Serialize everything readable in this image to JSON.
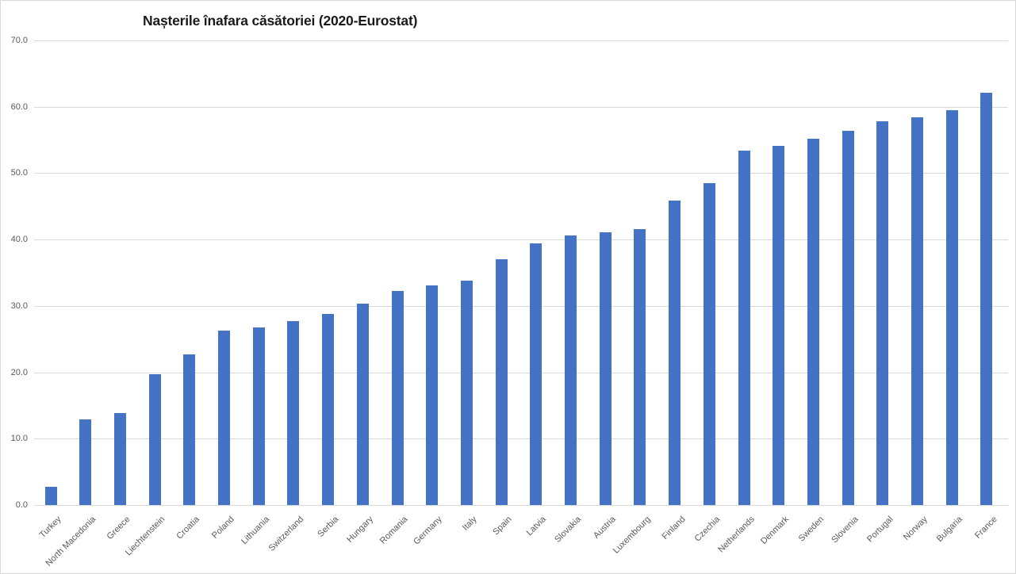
{
  "chart_data": {
    "type": "bar",
    "title": "Nașterile înafara căsătoriei (2020-Eurostat)",
    "categories": [
      "Turkey",
      "North Macedonia",
      "Greece",
      "Liechtenstein",
      "Croatia",
      "Poland",
      "Lithuania",
      "Switzerland",
      "Serbia",
      "Hungary",
      "Romania",
      "Germany",
      "Italy",
      "Spain",
      "Latvia",
      "Slovakia",
      "Austria",
      "Luxembourg",
      "Finland",
      "Czechia",
      "Netherlands",
      "Denmark",
      "Sweden",
      "Slovenia",
      "Portugal",
      "Norway",
      "Bulgaria",
      "France"
    ],
    "values": [
      2.8,
      12.9,
      13.8,
      19.7,
      22.7,
      26.3,
      26.8,
      27.7,
      28.8,
      30.3,
      32.3,
      33.1,
      33.8,
      37.0,
      39.4,
      40.6,
      41.1,
      41.6,
      45.9,
      48.5,
      53.4,
      54.1,
      55.2,
      56.4,
      57.8,
      58.4,
      59.5,
      62.1
    ],
    "xlabel": "",
    "ylabel": "",
    "ylim": [
      0,
      70
    ],
    "ytick_step": 10,
    "ytick_labels": [
      "0.0",
      "10.0",
      "20.0",
      "30.0",
      "40.0",
      "50.0",
      "60.0",
      "70.0"
    ],
    "grid": true,
    "legend": false,
    "bar_color": "#4472c4",
    "gridline_color": "#d9d9d9",
    "tick_label_color": "#595959",
    "title_color": "#1a1a1a",
    "background_color": "#ffffff"
  }
}
